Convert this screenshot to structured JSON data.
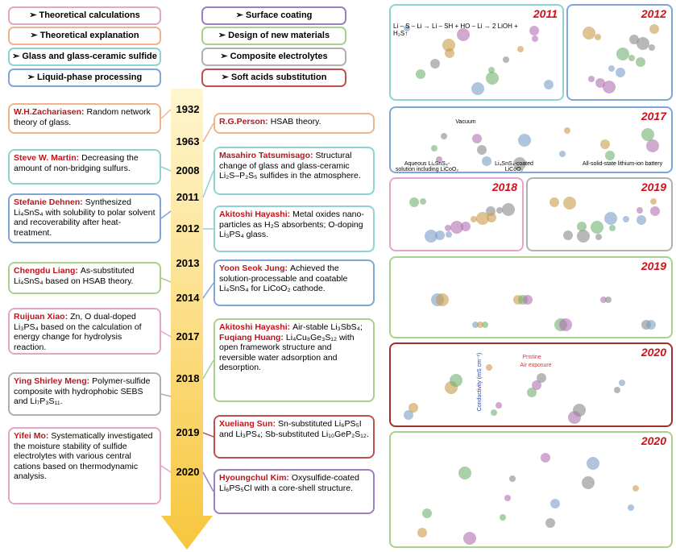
{
  "legend": [
    {
      "label": "➢ Theoretical calculations",
      "color": "#e3a6c8"
    },
    {
      "label": "➢ Theoretical explanation",
      "color": "#f0b48a"
    },
    {
      "label": "➢ Glass and glass-ceramic sulfide",
      "color": "#8fd3d0"
    },
    {
      "label": "➢ Liquid-phase processing",
      "color": "#7ea6d8"
    },
    {
      "label": "➢ Surface coating",
      "color": "#9b7fc4"
    },
    {
      "label": "➢ Design of new materials",
      "color": "#a9d18e"
    },
    {
      "label": "➢ Composite electrolytes",
      "color": "#b0b0b0"
    },
    {
      "label": "➢ Soft acids substitution",
      "color": "#c0504d"
    }
  ],
  "years": [
    "1932",
    "1963",
    "2008",
    "2011",
    "2012",
    "2013",
    "2014",
    "2017",
    "2018",
    "2019",
    "2020"
  ],
  "left_cards": [
    {
      "color": "#f0b48a",
      "entries": [
        {
          "name": "W.H.Zachariasen:",
          "text": "Random network theory of glass."
        }
      ]
    },
    {
      "color": "#8fd3d0",
      "entries": [
        {
          "name": "Steve W. Martin:",
          "text": "Decreasing the amount of non-bridging sulfurs."
        }
      ]
    },
    {
      "color": "#7ea6d8",
      "entries": [
        {
          "name": "Stefanie Dehnen:",
          "text": "Synthesized Li₄SnS₄ with solubility to polar solvent and recoverability after heat-treatment."
        }
      ]
    },
    {
      "color": "#a9d18e",
      "entries": [
        {
          "name": "Chengdu Liang:",
          "text": "As-substituted Li₄SnS₄ based on HSAB theory."
        }
      ]
    },
    {
      "color": "#e3a6c8",
      "entries": [
        {
          "name": "Ruijuan Xiao:",
          "text": "Zn, O dual-doped Li₃PS₄ based on the calculation of energy change for hydrolysis reaction."
        }
      ]
    },
    {
      "color": "#b0b0b0",
      "entries": [
        {
          "name": "Ying Shirley Meng:",
          "text": "Polymer-sulfide composite with hydrophobic SEBS and Li₇P₃S₁₁."
        }
      ]
    },
    {
      "color": "#e3a6c8",
      "entries": [
        {
          "name": "Yifei Mo:",
          "text": "Systematically investigated the moisture stability of sulfide electrolytes with various central cations based on thermodynamic analysis."
        }
      ]
    }
  ],
  "right_cards": [
    {
      "color": "#f0b48a",
      "entries": [
        {
          "name": "R.G.Person:",
          "text": "HSAB theory."
        }
      ]
    },
    {
      "color": "#8fd3d0",
      "entries": [
        {
          "name": "Masahiro Tatsumisago:",
          "text": "Structural change of glass and glass-ceramic Li₂S–P₂S₅ sulfides in the atmosphere."
        }
      ]
    },
    {
      "color": "#8fd3d0",
      "entries": [
        {
          "name": "Akitoshi Hayashi:",
          "text": "Metal oxides nano-particles as H₂S absorbents; O-doping Li₃PS₄ glass."
        }
      ]
    },
    {
      "color": "#7ea6d8",
      "entries": [
        {
          "name": "Yoon Seok Jung:",
          "text": "Achieved the solution-processable and coatable Li₄SnS₄ for LiCoO₂ cathode."
        }
      ]
    },
    {
      "color": "#a9d18e",
      "entries": [
        {
          "name": "Akitoshi Hayashi:",
          "text": "Air-stable Li₃SbS₄;"
        },
        {
          "name": "Fuqiang Huang:",
          "text": "Li₄Cu₈Ge₃S₁₂ with open framework structure and reversible water adsorption and desorption."
        }
      ]
    },
    {
      "color": "#c0504d",
      "entries": [
        {
          "name": "Xueliang Sun:",
          "text": "Sn-substituted Li₆PS₅I and Li₃PS₄; Sb-substituted Li₁₀GeP₂S₁₂."
        }
      ]
    },
    {
      "color": "#9b7fc4",
      "entries": [
        {
          "name": "Hyoungchul Kim:",
          "text": "Oxysulfide-coated Li₆PS₅Cl with a core-shell structure."
        }
      ]
    }
  ],
  "panels": [
    {
      "year": "2011",
      "color": "#8fd3d0"
    },
    {
      "year": "2012",
      "color": "#7ea6d8"
    },
    {
      "year": "2017",
      "color": "#7ea6d8"
    },
    {
      "year": "2018",
      "color": "#e3a6c8"
    },
    {
      "year": "2019",
      "color": "#b0b0b0"
    },
    {
      "year": "2019",
      "color": "#a9d18e"
    },
    {
      "year": "2020",
      "color": "#a0302e"
    },
    {
      "year": "2020",
      "color": "#a9d18e"
    }
  ],
  "panel_texts": {
    "vacuum": "Vacuum",
    "solution": "Aqueous Li₄SnS₄-solution including LiCoO₂",
    "coated": "Li₄SnS₄-coated LiCoO₂",
    "battery": "All-solid-state lithium-ion battery",
    "pristine": "Pristine",
    "air": "Air exposure",
    "conductivity": "Conductivity (mS cm⁻¹)",
    "reaction": "Li – S – Li → Li – SH + HO – Li → 2 LiOH + H₂S↑"
  }
}
